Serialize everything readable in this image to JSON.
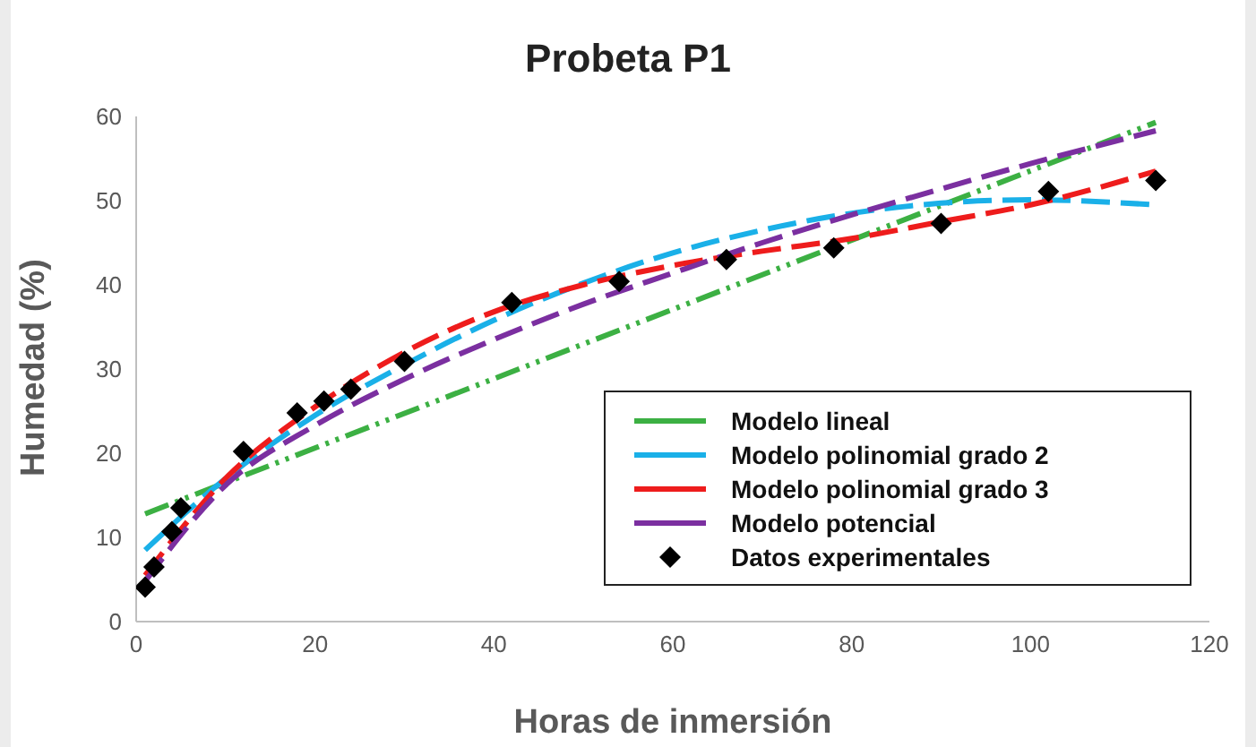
{
  "chart_data": {
    "type": "line",
    "title": "Probeta P1",
    "xlabel": "Horas de inmersión",
    "ylabel": "Humedad (%)",
    "xlim": [
      0,
      120
    ],
    "xticks": [
      0,
      20,
      40,
      60,
      80,
      100,
      120
    ],
    "ylim": [
      0,
      60
    ],
    "yticks": [
      0,
      10,
      20,
      30,
      40,
      50,
      60
    ],
    "grid": false,
    "legend": "bottom right",
    "line_style": "dashed",
    "series": [
      {
        "name": "Modelo lineal",
        "color": "#3cb043",
        "x": [
          1,
          114
        ],
        "values": [
          12.8,
          59.3
        ]
      },
      {
        "name": "Modelo polinomial grado 2",
        "color": "#1ab0e8",
        "x": [
          1,
          10,
          20,
          30,
          40,
          50,
          60,
          70,
          80,
          90,
          100,
          114
        ],
        "values": [
          8.5,
          17,
          24.5,
          30.5,
          35.8,
          40.2,
          43.8,
          46.5,
          48.5,
          49.7,
          50.1,
          49.5
        ]
      },
      {
        "name": "Modelo polinomial grado 3",
        "color": "#ee1c1c",
        "x": [
          1,
          10,
          20,
          30,
          40,
          50,
          60,
          70,
          80,
          90,
          100,
          114
        ],
        "values": [
          5.5,
          17,
          25.5,
          32,
          36.8,
          40,
          42.3,
          44,
          45.5,
          47.5,
          49.5,
          53.5
        ]
      },
      {
        "name": "Modelo potencial",
        "color": "#7b2fa0",
        "x": [
          1,
          10,
          20,
          30,
          40,
          50,
          60,
          70,
          80,
          90,
          100,
          114
        ],
        "values": [
          4.8,
          16.2,
          23.3,
          28.8,
          33.5,
          37.7,
          41.4,
          45,
          48.3,
          51.4,
          54.4,
          58.3
        ]
      },
      {
        "name": "Datos experimentales",
        "type": "scatter",
        "marker": "diamond",
        "color": "#000000",
        "x": [
          1,
          2,
          4,
          5,
          12,
          18,
          21,
          24,
          30,
          42,
          54,
          66,
          78,
          90,
          102,
          114
        ],
        "values": [
          4.1,
          6.5,
          10.7,
          13.5,
          20.2,
          24.8,
          26.2,
          27.6,
          30.9,
          37.9,
          40.4,
          43,
          44.4,
          47.3,
          51.1,
          52.4
        ]
      }
    ]
  }
}
